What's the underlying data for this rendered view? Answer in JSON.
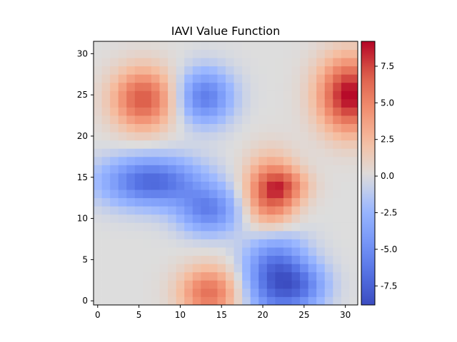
{
  "chart_data": {
    "type": "heatmap",
    "title": "IAVI Value Function",
    "xlabel": "",
    "ylabel": "",
    "grid_size": [
      32,
      32
    ],
    "xlim": [
      -0.5,
      31.5
    ],
    "ylim": [
      -0.5,
      31.5
    ],
    "x_ticks": [
      "0",
      "5",
      "10",
      "15",
      "20",
      "25",
      "30"
    ],
    "y_ticks": [
      "0",
      "5",
      "10",
      "15",
      "20",
      "25",
      "30"
    ],
    "colormap": "coolwarm",
    "value_range": [
      -8.8,
      9.2
    ],
    "colorbar_ticks": [
      "-7.5",
      "-5.0",
      "-2.5",
      "0.0",
      "2.5",
      "5.0",
      "7.5"
    ],
    "features": [
      {
        "kind": "peak",
        "center": [
          5.5,
          24.5
        ],
        "value": 7.0,
        "spread": [
          2.6,
          2.6
        ]
      },
      {
        "kind": "valley",
        "center": [
          13.0,
          24.8
        ],
        "value": -6.0,
        "spread": [
          2.3,
          2.3
        ]
      },
      {
        "kind": "peak",
        "center": [
          30.5,
          25.0
        ],
        "value": 9.2,
        "spread": [
          2.6,
          3.2
        ]
      },
      {
        "kind": "valley",
        "center": [
          6.5,
          14.5
        ],
        "value": -7.2,
        "spread": [
          4.2,
          2.1
        ]
      },
      {
        "kind": "valley",
        "center": [
          13.5,
          11.0
        ],
        "value": -5.5,
        "spread": [
          2.6,
          2.0
        ]
      },
      {
        "kind": "peak",
        "center": [
          21.0,
          13.0
        ],
        "value": 7.0,
        "spread": [
          2.2,
          3.0
        ]
      },
      {
        "kind": "peak",
        "center": [
          23.0,
          14.0
        ],
        "value": 3.0,
        "spread": [
          2.0,
          1.4
        ]
      },
      {
        "kind": "valley",
        "center": [
          21.5,
          3.0
        ],
        "value": -7.5,
        "spread": [
          2.6,
          3.6
        ]
      },
      {
        "kind": "valley",
        "center": [
          25.0,
          1.8
        ],
        "value": -4.0,
        "spread": [
          2.2,
          2.0
        ]
      },
      {
        "kind": "peak",
        "center": [
          13.5,
          1.0
        ],
        "value": 6.0,
        "spread": [
          2.5,
          2.2
        ]
      }
    ]
  }
}
